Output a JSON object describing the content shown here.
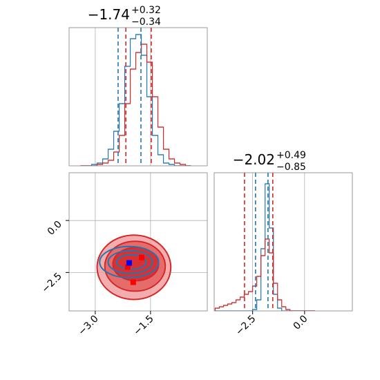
{
  "chart_data": {
    "type": "corner",
    "grid": true,
    "params": [
      {
        "title": "−1.74",
        "title_upper": "+0.32",
        "title_lower": "−0.34",
        "lim": [
          -3.71,
          0.04
        ],
        "ticks": [
          {
            "value": -3.0,
            "label": "−3.0"
          },
          {
            "value": -1.5,
            "label": "−1.5"
          }
        ],
        "hist_ylim": [
          0,
          100
        ],
        "bins": [
          -3.4,
          -3.25,
          -3.1,
          -2.95,
          -2.8,
          -2.65,
          -2.5,
          -2.35,
          -2.2,
          -2.05,
          -1.9,
          -1.75,
          -1.6,
          -1.45,
          -1.3,
          -1.15,
          -1.0,
          -0.85,
          -0.7,
          -0.55,
          -0.4
        ],
        "series": [
          {
            "color": "#1f77b4",
            "values": [
              0,
              0,
              1,
              2,
              5,
              12,
              25,
              45,
              72,
              92,
              95,
              80,
              50,
              22,
              8,
              2,
              1,
              0,
              0,
              0
            ],
            "quantiles": [
              -2.38,
              -1.76
            ]
          },
          {
            "color": "#d62728",
            "values": [
              0,
              0,
              0,
              1,
              2,
              4,
              10,
              22,
              45,
              70,
              82,
              88,
              75,
              50,
              28,
              12,
              5,
              2,
              1,
              0
            ],
            "quantiles": [
              -2.17,
              -1.48
            ]
          }
        ]
      },
      {
        "title": "−2.02",
        "title_upper": "+0.49",
        "title_lower": "−0.85",
        "lim": [
          -4.35,
          2.3
        ],
        "ticks": [
          {
            "value": -2.5,
            "label": "−2.5"
          },
          {
            "value": 0.0,
            "label": "0.0"
          }
        ],
        "hist_ylim": [
          0,
          100
        ],
        "bins": [
          -4.3,
          -4.1,
          -3.9,
          -3.7,
          -3.5,
          -3.3,
          -3.1,
          -2.9,
          -2.7,
          -2.5,
          -2.3,
          -2.1,
          -1.9,
          -1.7,
          -1.5,
          -1.3,
          -1.1,
          -0.9,
          -0.7,
          -0.5,
          -0.3,
          -0.1,
          0.1,
          0.3,
          0.5
        ],
        "series": [
          {
            "color": "#1f77b4",
            "values": [
              0,
              0,
              0,
              0,
              0,
              0,
              0,
              0,
              0,
              1,
              8,
              45,
              92,
              60,
              12,
              2,
              0,
              0,
              0,
              0,
              0,
              0,
              0,
              0
            ],
            "quantiles": [
              -2.36,
              -1.76
            ]
          },
          {
            "color": "#d62728",
            "values": [
              2,
              3,
              4,
              5,
              6,
              8,
              10,
              12,
              14,
              18,
              25,
              40,
              52,
              42,
              20,
              8,
              3,
              1,
              0,
              0,
              0,
              0,
              0,
              0
            ],
            "quantiles": [
              -2.89,
              -1.53
            ]
          }
        ]
      }
    ],
    "contours": [
      {
        "color": "#d62728",
        "fill": "#f0a0a0",
        "cx": -1.95,
        "cy": -2.25,
        "rx": 1.0,
        "ry": 1.55
      },
      {
        "color": "#d62728",
        "fill": "#e46060",
        "cx": -1.92,
        "cy": -2.2,
        "rx": 0.82,
        "ry": 1.2
      },
      {
        "color": "#d62728",
        "fill": "#d62728",
        "cx": -1.9,
        "cy": -2.1,
        "rx": 0.62,
        "ry": 0.8
      },
      {
        "color": "#1f77b4",
        "fill": "none",
        "cx": -2.08,
        "cy": -2.0,
        "rx": 0.8,
        "ry": 0.75
      },
      {
        "color": "#1f77b4",
        "fill": "none",
        "cx": -2.05,
        "cy": -2.0,
        "rx": 0.6,
        "ry": 0.55
      },
      {
        "color": "#1f77b4",
        "fill": "none",
        "cx": -2.02,
        "cy": -2.0,
        "rx": 0.4,
        "ry": 0.35
      }
    ],
    "markers": [
      {
        "color": "#ff0000",
        "x": -1.74,
        "y": -1.78
      },
      {
        "color": "#ff0000",
        "x": -1.97,
        "y": -2.97
      },
      {
        "color": "#ff0000",
        "x": -2.12,
        "y": -2.24
      },
      {
        "color": "#0000ff",
        "x": -2.08,
        "y": -2.04
      }
    ]
  }
}
